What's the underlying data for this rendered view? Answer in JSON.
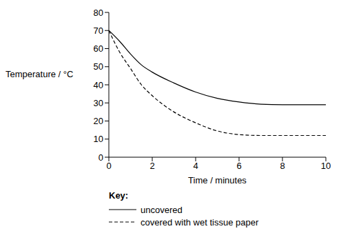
{
  "chart_data": {
    "type": "line",
    "x_label": "Time / minutes",
    "y_label": "Temperature / °C",
    "legend_title": "Key:",
    "legend": "bottom left",
    "x": [
      0,
      0.5,
      1,
      1.5,
      2,
      3,
      4,
      5,
      6,
      7,
      8,
      9,
      10
    ],
    "series": [
      {
        "name": "uncovered",
        "color": "#000000",
        "line_style": "solid",
        "values": [
          70,
          64,
          57,
          51,
          47,
          41,
          36,
          32.5,
          30.5,
          29.3,
          29,
          29,
          29
        ]
      },
      {
        "name": "covered with wet tissue paper",
        "color": "#000000",
        "line_style": "dashed",
        "values": [
          70,
          58,
          49,
          40,
          34,
          25,
          19,
          14.5,
          12.5,
          12,
          12,
          12,
          12
        ]
      }
    ],
    "xlim": [
      0,
      10
    ],
    "xticks": [
      0,
      2,
      4,
      6,
      8,
      10
    ],
    "ylim": [
      0,
      80
    ],
    "yticks": [
      0,
      10,
      20,
      30,
      40,
      50,
      60,
      70,
      80
    ]
  }
}
